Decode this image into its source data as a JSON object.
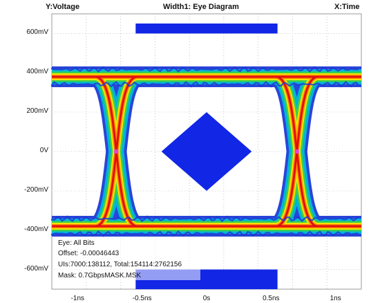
{
  "header": {
    "y_label": "Y:Voltage",
    "title": "Width1: Eye Diagram",
    "x_label": "X:Time"
  },
  "info": {
    "line1": "Eye: All Bits",
    "line2": "Offset: -0.00046443",
    "line3": "UIs:7000:138112, Total:154114:2762156",
    "line4": "Mask: 0.7GbpsMASK.MSK"
  },
  "chart_data": {
    "type": "eye-diagram",
    "title": "Width1: Eye Diagram",
    "xlabel": "X:Time",
    "ylabel": "Y:Voltage",
    "x_unit": "ns",
    "y_unit": "mV",
    "xlim": [
      -1.2,
      1.2
    ],
    "ylim": [
      -700,
      700
    ],
    "x_ticks": [
      {
        "value": -1.0,
        "label": "-1ns"
      },
      {
        "value": -0.5,
        "label": "-0.5ns"
      },
      {
        "value": 0.0,
        "label": "0s"
      },
      {
        "value": 0.5,
        "label": "0.5ns"
      },
      {
        "value": 1.0,
        "label": "1ns"
      }
    ],
    "y_ticks": [
      {
        "value": 600,
        "label": "600mV"
      },
      {
        "value": 400,
        "label": "400mV"
      },
      {
        "value": 200,
        "label": "200mV"
      },
      {
        "value": 0,
        "label": "0V"
      },
      {
        "value": -200,
        "label": "-200mV"
      },
      {
        "value": -400,
        "label": "-400mV"
      },
      {
        "value": -600,
        "label": "-600mV"
      }
    ],
    "grid": true,
    "signal": {
      "high_level": 380,
      "low_level": -380,
      "crossings": [
        -0.7,
        0.7
      ],
      "crossing_level": 0,
      "rail_spread": 60
    },
    "mask": {
      "center_polygon": [
        [
          -0.35,
          0
        ],
        [
          0,
          200
        ],
        [
          0.35,
          0
        ],
        [
          0,
          -200
        ]
      ],
      "top_bar": {
        "x": [
          -0.55,
          0.55
        ],
        "y": [
          600,
          700
        ]
      },
      "bottom_bar": {
        "x": [
          -0.55,
          0.55
        ],
        "y": [
          -700,
          -600
        ]
      }
    },
    "colors": {
      "mask": "#1226e6",
      "density": [
        "#1f3bd6",
        "#00b4d8",
        "#3ccf4e",
        "#f5e400",
        "#ff8a00",
        "#e01010"
      ],
      "crossing_marker": "#e040e0"
    }
  }
}
